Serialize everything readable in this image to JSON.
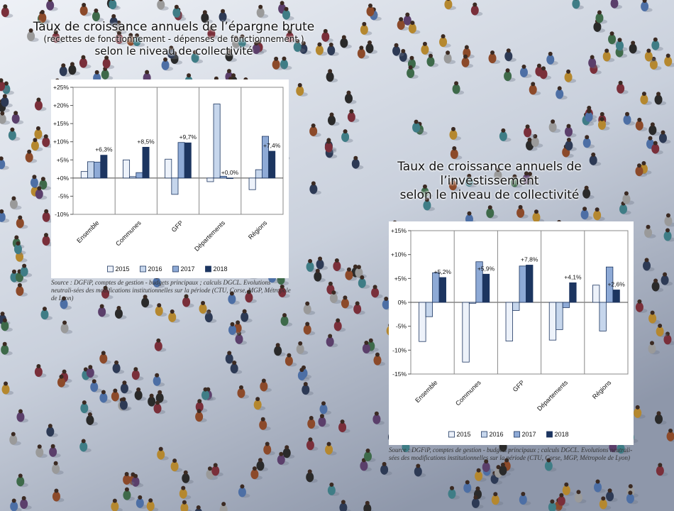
{
  "chart1": {
    "title_line1": "Taux de croissance annuels de l’épargne brute",
    "title_line2": "(recettes de fonctionnement - dépenses de fonctionnement )",
    "title_line3": "selon le niveau de collectivité",
    "source": "Source : DGFiP, comptes de gestion - budgets principaux ; calculs DGCL. Evolutions neutrali-sées des modifications institutionnelles sur la période (CTU, Corse, MGP, Métropole de Lyon)"
  },
  "chart2": {
    "title_line1": "Taux de croissance annuels de",
    "title_line2": "l’investissement",
    "title_line3": "selon le niveau de collectivité",
    "source_line1": "Source : DGFiP, comptes de gestion - budgets principaux ; calculs DGCL. Evolutions neutrali-",
    "source_line2": "sées des modifications institutionnelles sur la période (CTU, Corse, MGP, Métropole de Lyon)"
  },
  "chart_data": [
    {
      "type": "bar",
      "categories": [
        "Ensemble",
        "Communes",
        "GFP",
        "Départements",
        "Régions"
      ],
      "series": [
        {
          "name": "2015",
          "values": [
            1.8,
            5.0,
            5.2,
            -1.0,
            -3.2
          ]
        },
        {
          "name": "2016",
          "values": [
            4.5,
            0.4,
            -4.5,
            20.4,
            2.3
          ]
        },
        {
          "name": "2017",
          "values": [
            4.4,
            1.5,
            9.8,
            0.5,
            11.5
          ]
        },
        {
          "name": "2018",
          "values": [
            6.3,
            8.5,
            9.7,
            0.0,
            7.4
          ]
        }
      ],
      "data_labels": [
        "+6,3%",
        "+8,5%",
        "+9,7%",
        "+0,0%",
        "+7,4%"
      ],
      "yticks": [
        "-10%",
        "-5%",
        "+0%",
        "+5%",
        "+10%",
        "+15%",
        "+20%",
        "+25%"
      ],
      "ylim": [
        -10,
        25
      ],
      "legend_position": "bottom",
      "colors": [
        "#edf2fa",
        "#c6d6ec",
        "#8eaad6",
        "#1c3560"
      ]
    },
    {
      "type": "bar",
      "categories": [
        "Ensemble",
        "Communes",
        "GFP",
        "Départements",
        "Régions"
      ],
      "series": [
        {
          "name": "2015",
          "values": [
            -8.2,
            -12.5,
            -8.1,
            -7.9,
            3.6
          ]
        },
        {
          "name": "2016",
          "values": [
            -3.0,
            -0.2,
            -1.7,
            -5.7,
            -6.0
          ]
        },
        {
          "name": "2017",
          "values": [
            6.2,
            8.5,
            7.6,
            -1.1,
            7.4
          ]
        },
        {
          "name": "2018",
          "values": [
            5.2,
            5.9,
            7.8,
            4.1,
            2.6
          ]
        }
      ],
      "data_labels": [
        "+5,2%",
        "+5,9%",
        "+7,8%",
        "+4,1%",
        "+2,6%"
      ],
      "yticks": [
        "-15%",
        "-10%",
        "-5%",
        "0%",
        "+5%",
        "+10%",
        "+15%"
      ],
      "ylim": [
        -15,
        15
      ],
      "legend_position": "bottom",
      "colors": [
        "#edf2fa",
        "#c6d6ec",
        "#8eaad6",
        "#1c3560"
      ]
    }
  ]
}
